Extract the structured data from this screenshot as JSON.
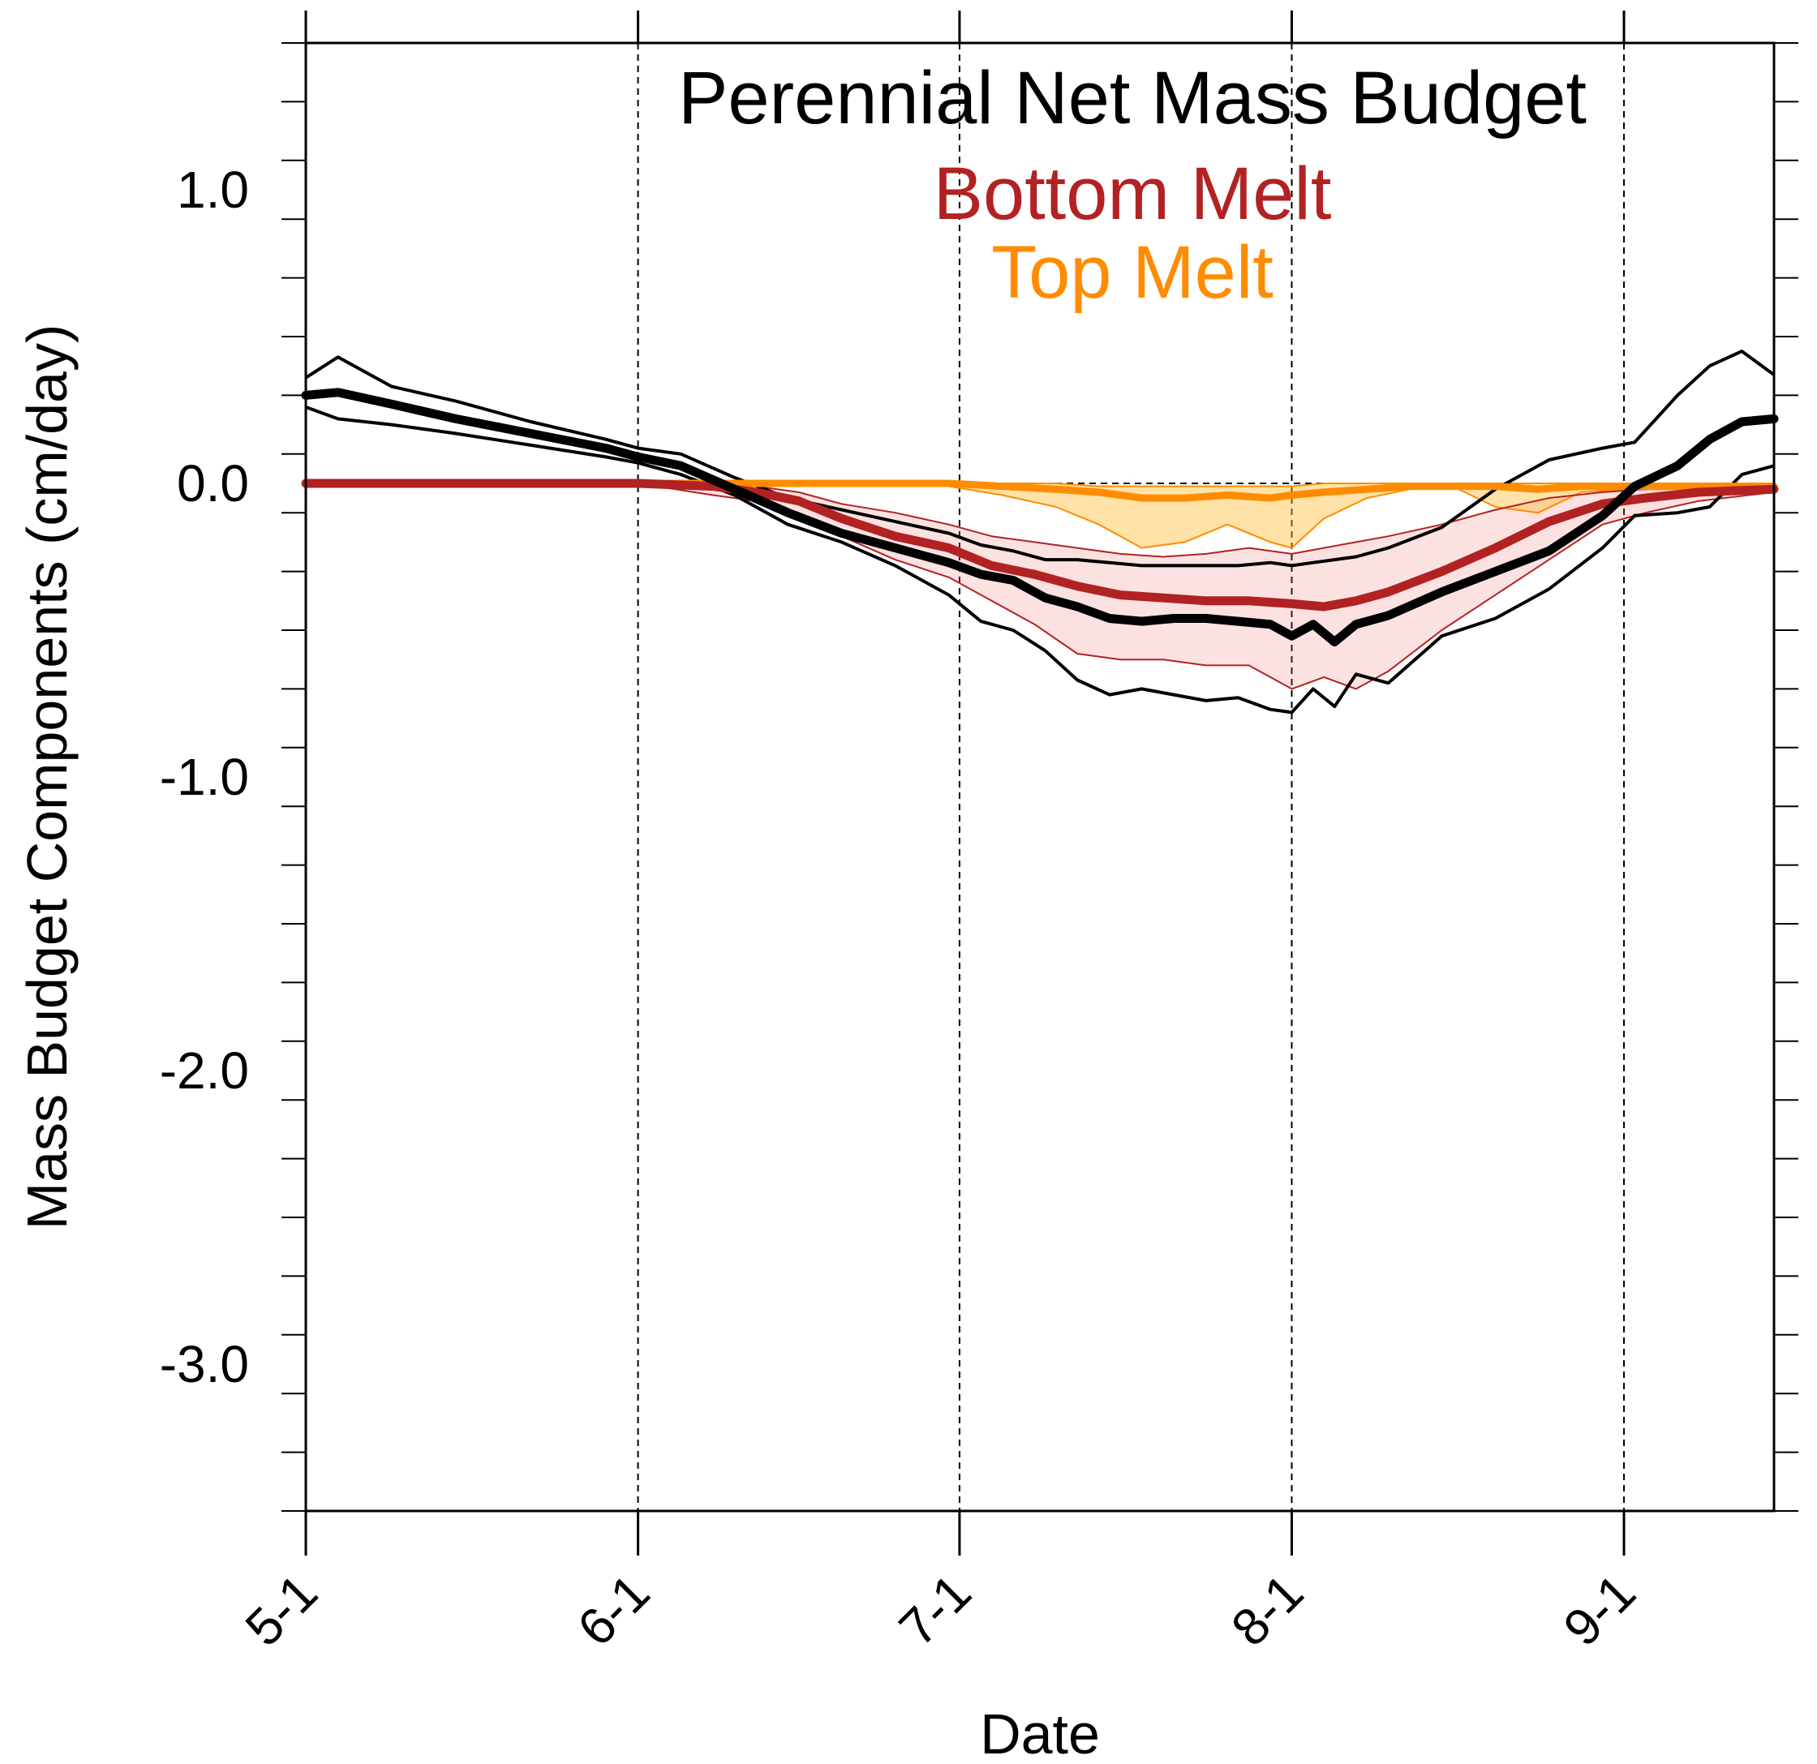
{
  "chart_data": {
    "type": "line",
    "title": "Perennial Net Mass Budget",
    "xlabel": "Date",
    "ylabel": "Mass Budget Components (cm/day)",
    "ylim": [
      -3.5,
      1.5
    ],
    "xlim": [
      "05-01",
      "09-15"
    ],
    "x_ticks": [
      {
        "date": "05-01",
        "label": "5-1"
      },
      {
        "date": "06-01",
        "label": "6-1"
      },
      {
        "date": "07-01",
        "label": "7-1"
      },
      {
        "date": "08-01",
        "label": "8-1"
      },
      {
        "date": "09-01",
        "label": "9-1"
      }
    ],
    "y_ticks": [
      {
        "value": 1.0,
        "label": "1.0"
      },
      {
        "value": 0.0,
        "label": "0.0"
      },
      {
        "value": -1.0,
        "label": "-1.0"
      },
      {
        "value": -2.0,
        "label": "-2.0"
      },
      {
        "value": -3.0,
        "label": "-3.0"
      }
    ],
    "y_minor_step": 0.2,
    "grid": "dashed vertical lines at monthly ticks, dashed zero line",
    "legend": [
      {
        "label": "Perennial Net Mass Budget",
        "color": "#000000"
      },
      {
        "label": "Bottom Melt",
        "color": "#b22222"
      },
      {
        "label": "Top Melt",
        "color": "#ff8c00"
      }
    ],
    "series": [
      {
        "name": "Net Mass Budget",
        "color": "#000000",
        "x": [
          "05-01",
          "05-04",
          "05-09",
          "05-15",
          "05-22",
          "05-29",
          "06-01",
          "06-05",
          "06-10",
          "06-15",
          "06-20",
          "06-25",
          "06-30",
          "07-03",
          "07-06",
          "07-09",
          "07-12",
          "07-15",
          "07-18",
          "07-21",
          "07-24",
          "07-27",
          "07-30",
          "08-01",
          "08-03",
          "08-05",
          "08-07",
          "08-10",
          "08-15",
          "08-20",
          "08-25",
          "08-30",
          "09-02",
          "09-06",
          "09-09",
          "09-12",
          "09-15"
        ],
        "mean": [
          0.3,
          0.31,
          0.27,
          0.22,
          0.17,
          0.12,
          0.09,
          0.06,
          -0.02,
          -0.1,
          -0.17,
          -0.22,
          -0.27,
          -0.31,
          -0.33,
          -0.39,
          -0.42,
          -0.46,
          -0.47,
          -0.46,
          -0.46,
          -0.47,
          -0.48,
          -0.52,
          -0.48,
          -0.54,
          -0.48,
          -0.45,
          -0.37,
          -0.3,
          -0.23,
          -0.11,
          -0.01,
          0.06,
          0.15,
          0.21,
          0.22
        ],
        "upper": [
          0.36,
          0.43,
          0.33,
          0.28,
          0.21,
          0.15,
          0.12,
          0.1,
          0.02,
          -0.05,
          -0.09,
          -0.13,
          -0.17,
          -0.21,
          -0.23,
          -0.26,
          -0.26,
          -0.27,
          -0.28,
          -0.28,
          -0.28,
          -0.28,
          -0.27,
          -0.28,
          -0.27,
          -0.26,
          -0.25,
          -0.22,
          -0.15,
          -0.02,
          0.08,
          0.12,
          0.14,
          0.3,
          0.4,
          0.45,
          0.37
        ],
        "lower": [
          0.26,
          0.22,
          0.2,
          0.17,
          0.13,
          0.09,
          0.07,
          0.03,
          -0.04,
          -0.14,
          -0.2,
          -0.28,
          -0.38,
          -0.47,
          -0.5,
          -0.57,
          -0.67,
          -0.72,
          -0.7,
          -0.72,
          -0.74,
          -0.73,
          -0.77,
          -0.78,
          -0.7,
          -0.76,
          -0.65,
          -0.68,
          -0.52,
          -0.46,
          -0.36,
          -0.22,
          -0.11,
          -0.1,
          -0.08,
          0.03,
          0.06
        ]
      },
      {
        "name": "Bottom Melt",
        "color": "#b22222",
        "x": [
          "05-01",
          "05-15",
          "06-01",
          "06-08",
          "06-12",
          "06-16",
          "06-20",
          "06-25",
          "06-30",
          "07-04",
          "07-08",
          "07-12",
          "07-16",
          "07-20",
          "07-24",
          "07-28",
          "08-01",
          "08-04",
          "08-07",
          "08-10",
          "08-15",
          "08-20",
          "08-25",
          "08-30",
          "09-03",
          "09-08",
          "09-15"
        ],
        "mean": [
          0.0,
          0.0,
          0.0,
          -0.01,
          -0.03,
          -0.06,
          -0.12,
          -0.18,
          -0.22,
          -0.28,
          -0.31,
          -0.35,
          -0.38,
          -0.39,
          -0.4,
          -0.4,
          -0.41,
          -0.42,
          -0.4,
          -0.37,
          -0.3,
          -0.22,
          -0.13,
          -0.07,
          -0.05,
          -0.03,
          -0.02
        ],
        "upper": [
          0.0,
          0.0,
          0.0,
          0.0,
          -0.01,
          -0.03,
          -0.07,
          -0.1,
          -0.14,
          -0.18,
          -0.2,
          -0.22,
          -0.24,
          -0.25,
          -0.24,
          -0.22,
          -0.24,
          -0.22,
          -0.2,
          -0.18,
          -0.14,
          -0.09,
          -0.05,
          -0.03,
          -0.02,
          -0.01,
          -0.01
        ],
        "lower": [
          0.0,
          0.0,
          0.0,
          -0.04,
          -0.06,
          -0.1,
          -0.18,
          -0.26,
          -0.32,
          -0.4,
          -0.48,
          -0.58,
          -0.6,
          -0.6,
          -0.62,
          -0.62,
          -0.7,
          -0.66,
          -0.7,
          -0.64,
          -0.5,
          -0.38,
          -0.26,
          -0.14,
          -0.1,
          -0.06,
          -0.03
        ]
      },
      {
        "name": "Top Melt",
        "color": "#ff8c00",
        "x": [
          "05-01",
          "06-01",
          "06-15",
          "06-25",
          "06-30",
          "07-05",
          "07-10",
          "07-14",
          "07-18",
          "07-22",
          "07-26",
          "07-30",
          "08-01",
          "08-04",
          "08-08",
          "08-12",
          "08-16",
          "08-20",
          "08-24",
          "08-28",
          "09-01",
          "09-15"
        ],
        "mean": [
          0.0,
          0.0,
          0.0,
          0.0,
          0.0,
          -0.01,
          -0.02,
          -0.03,
          -0.05,
          -0.05,
          -0.04,
          -0.05,
          -0.04,
          -0.03,
          -0.02,
          -0.01,
          -0.01,
          -0.01,
          -0.02,
          -0.01,
          -0.01,
          -0.01
        ],
        "upper": [
          0.0,
          0.0,
          0.0,
          0.0,
          0.0,
          0.0,
          0.0,
          -0.01,
          -0.01,
          -0.01,
          -0.01,
          -0.01,
          -0.01,
          0.0,
          0.0,
          0.0,
          0.0,
          0.0,
          0.0,
          0.0,
          0.0,
          0.0
        ],
        "lower": [
          0.0,
          0.0,
          0.0,
          0.0,
          -0.01,
          -0.04,
          -0.08,
          -0.14,
          -0.22,
          -0.2,
          -0.14,
          -0.2,
          -0.22,
          -0.12,
          -0.05,
          -0.02,
          -0.01,
          -0.08,
          -0.1,
          -0.03,
          -0.02,
          -0.02
        ]
      }
    ]
  }
}
